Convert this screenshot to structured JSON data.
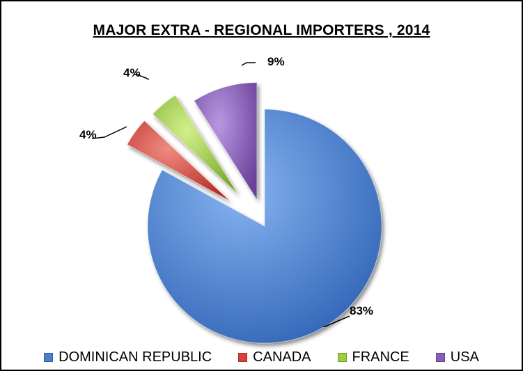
{
  "chart_data": {
    "type": "pie",
    "title": "MAJOR EXTRA - REGIONAL IMPORTERS , 2014",
    "categories": [
      "DOMINICAN REPUBLIC",
      "CANADA",
      "FRANCE",
      "USA"
    ],
    "values": [
      83,
      4,
      4,
      9
    ],
    "labels": [
      "83%",
      "4%",
      "4%",
      "9%"
    ],
    "colors": [
      "#4a7fd1",
      "#d8403a",
      "#9bcf3c",
      "#8a5cb8"
    ],
    "legend": "bottom",
    "exploded": [
      false,
      true,
      true,
      true
    ]
  }
}
